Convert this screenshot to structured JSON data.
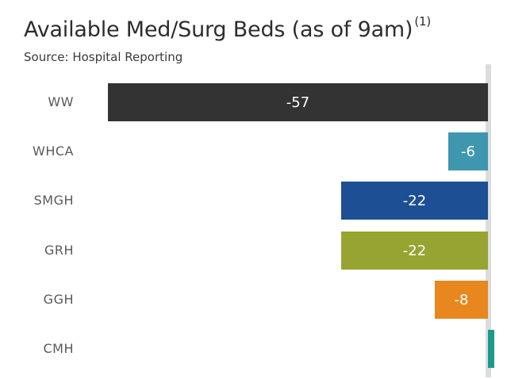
{
  "header": {
    "title": "Available Med/Surg Beds (as of 9am)",
    "footnote_marker": "(1)",
    "source": "Source: Hospital Reporting"
  },
  "chart_data": {
    "type": "bar",
    "orientation": "horizontal",
    "title": "Available Med/Surg Beds (as of 9am)",
    "footnote_marker": "(1)",
    "source": "Source: Hospital Reporting",
    "categories": [
      "WW",
      "WHCA",
      "SMGH",
      "GRH",
      "GGH",
      "CMH"
    ],
    "values": [
      -57,
      -6,
      -22,
      -22,
      -8,
      1
    ],
    "bar_labels": [
      "-57",
      "-6",
      "-22",
      "-22",
      "-8",
      ""
    ],
    "bar_colors": [
      "#333333",
      "#3e97ae",
      "#1d4f94",
      "#97a432",
      "#e8871e",
      "#1b9a8d"
    ],
    "xlim": [
      -60,
      3
    ],
    "grid": false,
    "legend": false,
    "axis_ticks": "none",
    "value_label_position": "inside-center",
    "zero_line": true,
    "colors": {
      "zero_line": "#dcdcdc",
      "category_label": "#595959",
      "value_label": "#ffffff",
      "title": "#2d2d2d",
      "source_text": "#3a3a3a",
      "background": "#ffffff"
    }
  }
}
